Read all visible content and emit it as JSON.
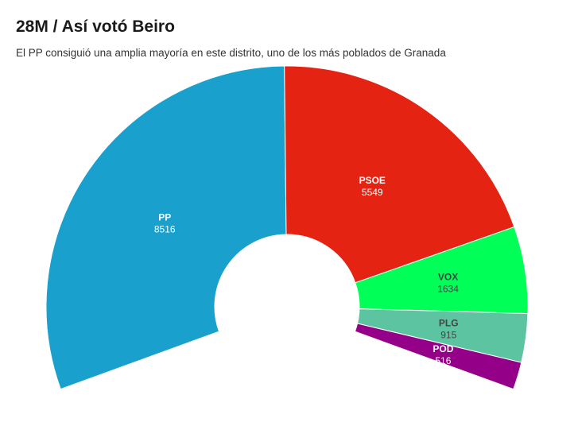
{
  "header": {
    "title": "28M / Así votó Beiro",
    "subtitle": "El PP consiguió una amplia mayoría en este distrito, uno de los más poblados de Granada"
  },
  "chart_data": {
    "type": "pie",
    "variant": "semi-donut",
    "title": "28M / Así votó Beiro",
    "subtitle": "El PP consiguió una amplia mayoría en este distrito, uno de los más poblados de Granada",
    "categories": [
      "PP",
      "PSOE",
      "VOX",
      "PLG",
      "POD"
    ],
    "values": [
      8516,
      5549,
      1634,
      915,
      516
    ],
    "colors": [
      "#1aa0cc",
      "#e42313",
      "#00ff57",
      "#5cc4a0",
      "#950089"
    ],
    "label_colors": [
      "#ffffff",
      "#ffffff",
      "#444444",
      "#444444",
      "#ffffff"
    ]
  }
}
